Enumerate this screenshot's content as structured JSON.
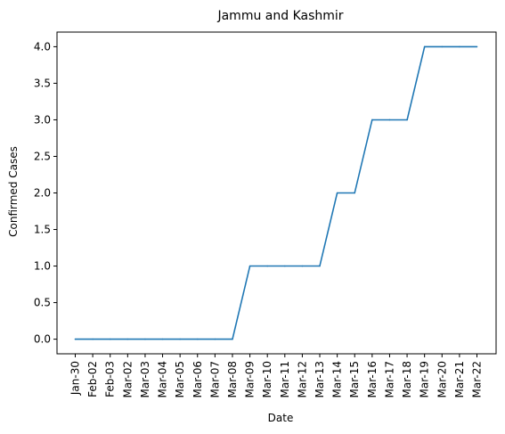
{
  "chart_data": {
    "type": "line",
    "title": "Jammu and Kashmir",
    "xlabel": "Date",
    "ylabel": "Confirmed Cases",
    "categories": [
      "Jan-30",
      "Feb-02",
      "Feb-03",
      "Mar-02",
      "Mar-03",
      "Mar-04",
      "Mar-05",
      "Mar-06",
      "Mar-07",
      "Mar-08",
      "Mar-09",
      "Mar-10",
      "Mar-11",
      "Mar-12",
      "Mar-13",
      "Mar-14",
      "Mar-15",
      "Mar-16",
      "Mar-17",
      "Mar-18",
      "Mar-19",
      "Mar-20",
      "Mar-21",
      "Mar-22"
    ],
    "series": [
      {
        "values": [
          0,
          0,
          0,
          0,
          0,
          0,
          0,
          0,
          0,
          0,
          1,
          1,
          1,
          1,
          1,
          2,
          2,
          3,
          3,
          3,
          4,
          4,
          4,
          4
        ]
      }
    ],
    "ylim": [
      -0.2,
      4.2
    ],
    "yticks": [
      0.0,
      0.5,
      1.0,
      1.5,
      2.0,
      2.5,
      3.0,
      3.5,
      4.0
    ],
    "ytick_labels": [
      "0.0",
      "0.5",
      "1.0",
      "1.5",
      "2.0",
      "2.5",
      "3.0",
      "3.5",
      "4.0"
    ],
    "grid": false,
    "legend": "none",
    "line_color": "#1f77b4"
  }
}
